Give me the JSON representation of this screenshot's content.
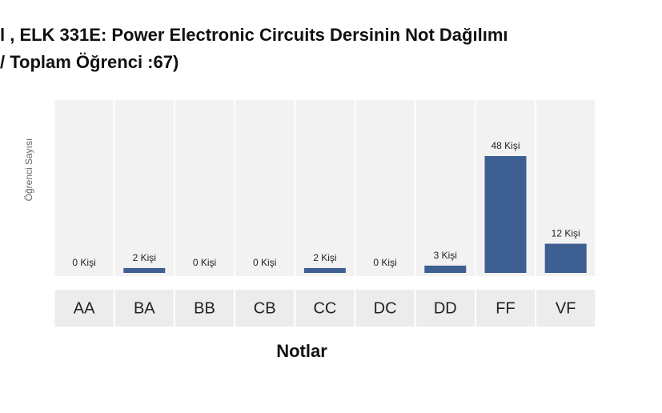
{
  "chart_data": {
    "type": "bar",
    "title": [
      "l , ELK 331E: Power Electronic Circuits Dersinin Not Dağılımı",
      "/ Toplam Öğrenci :67)"
    ],
    "categories": [
      "AA",
      "BA",
      "BB",
      "CB",
      "CC",
      "DC",
      "DD",
      "FF",
      "VF"
    ],
    "values": [
      0,
      2,
      0,
      0,
      2,
      0,
      3,
      48,
      12
    ],
    "value_labels": [
      "0 Kişi",
      "2 Kişi",
      "0 Kişi",
      "0 Kişi",
      "2 Kişi",
      "0 Kişi",
      "3 Kişi",
      "48 Kişi",
      "12 Kişi"
    ],
    "x_label": "Notlar",
    "y_label": "Öğrenci Sayısı",
    "color": "#3d5f91"
  }
}
